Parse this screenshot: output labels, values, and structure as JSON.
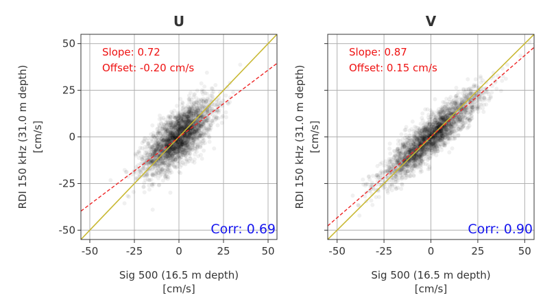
{
  "chart_data": [
    {
      "type": "scatter",
      "title": "U",
      "xlabel": "Sig 500 (16.5 m depth)\n[cm/s]",
      "ylabel": "RDI 150 kHz (31.0 m depth)\n[cm/s]",
      "xlim": [
        -55,
        55
      ],
      "ylim": [
        -55,
        55
      ],
      "xticks": [
        -50,
        -25,
        0,
        25,
        50
      ],
      "yticks": [
        -50,
        -25,
        0,
        25,
        50
      ],
      "grid": true,
      "point_color": "#000000",
      "cloud": {
        "center": [
          0,
          0
        ],
        "sd_x": 9.5,
        "sd_y": 9.5,
        "corr": 0.69,
        "count": 2600
      },
      "annotations": {
        "slope": "Slope: 0.72",
        "offset": "Offset: -0.20 cm/s",
        "corr": "Corr: 0.69"
      },
      "fit_line": {
        "slope": 0.72,
        "offset": -0.2,
        "color": "#ee2222",
        "style": "dashed"
      },
      "identity_line": {
        "slope": 1,
        "offset": 0,
        "color": "#c8b832"
      }
    },
    {
      "type": "scatter",
      "title": "V",
      "xlabel": "Sig 500 (16.5 m depth)\n[cm/s]",
      "ylabel": "RDI 150 kHz (31.0 m depth)\n[cm/s]",
      "xlim": [
        -55,
        55
      ],
      "ylim": [
        -55,
        55
      ],
      "xticks": [
        -50,
        -25,
        0,
        25,
        50
      ],
      "yticks": [
        -50,
        -25,
        0,
        25,
        50
      ],
      "grid": true,
      "point_color": "#000000",
      "cloud": {
        "center": [
          0,
          0
        ],
        "sd_x": 13,
        "sd_y": 12,
        "corr": 0.9,
        "count": 2600
      },
      "annotations": {
        "slope": "Slope: 0.87",
        "offset": "Offset: 0.15 cm/s",
        "corr": "Corr: 0.90"
      },
      "fit_line": {
        "slope": 0.87,
        "offset": 0.15,
        "color": "#ee2222",
        "style": "dashed"
      },
      "identity_line": {
        "slope": 1,
        "offset": 0,
        "color": "#c8b832"
      }
    }
  ],
  "colors": {
    "annotation": "#ee1111",
    "corr": "#1515ee",
    "grid": "#b0b0b0",
    "axis": "#333333"
  }
}
